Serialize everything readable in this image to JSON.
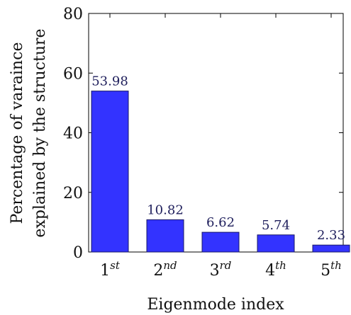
{
  "chart_data": {
    "type": "bar",
    "categories": [
      {
        "base": "1",
        "sup": "st"
      },
      {
        "base": "2",
        "sup": "nd"
      },
      {
        "base": "3",
        "sup": "rd"
      },
      {
        "base": "4",
        "sup": "th"
      },
      {
        "base": "5",
        "sup": "th"
      }
    ],
    "values": [
      53.98,
      10.82,
      6.62,
      5.74,
      2.33
    ],
    "data_labels": [
      "53.98",
      "10.82",
      "6.62",
      "5.74",
      "2.33"
    ],
    "xlabel": "Eigenmode index",
    "ylabel_lines": [
      "Percentage of varaince",
      "explained by the structure"
    ],
    "ylim": [
      0,
      80
    ],
    "yticks": [
      0,
      20,
      40,
      60,
      80
    ],
    "grid": false,
    "colors": {
      "bar_fill": "#3333ff",
      "bar_stroke": "#1a1a66",
      "label": "#1f1f5c",
      "axis": "#000000"
    }
  }
}
